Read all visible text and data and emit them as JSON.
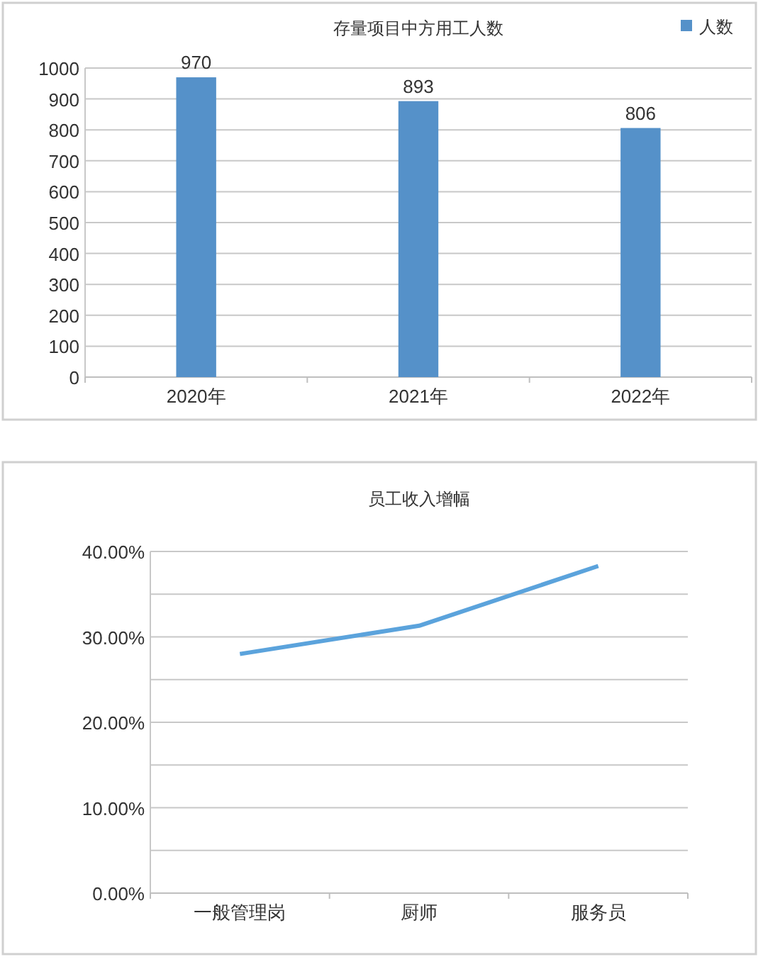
{
  "chart_data": [
    {
      "type": "bar",
      "title": "存量项目中方用工人数",
      "categories": [
        "2020年",
        "2021年",
        "2022年"
      ],
      "series": [
        {
          "name": "人数",
          "color": "#5591c9",
          "values": [
            970,
            893,
            806
          ]
        }
      ],
      "ylim": [
        0,
        1000
      ],
      "yticks": [
        0,
        100,
        200,
        300,
        400,
        500,
        600,
        700,
        800,
        900,
        1000
      ],
      "grid": "y",
      "legend": "top right",
      "data_labels": true
    },
    {
      "type": "line",
      "title": "员工收入增幅",
      "categories": [
        "一般管理岗",
        "厨师",
        "服务员"
      ],
      "series": [
        {
          "color": "#5ba3dc",
          "values": [
            28.0,
            31.3,
            38.3
          ]
        }
      ],
      "ylim": [
        0,
        40
      ],
      "yticks": [
        {
          "value": 0,
          "label": "0.00%"
        },
        {
          "value": 5,
          "label": null
        },
        {
          "value": 10,
          "label": "10.00%"
        },
        {
          "value": 15,
          "label": null
        },
        {
          "value": 20,
          "label": "20.00%"
        },
        {
          "value": 25,
          "label": null
        },
        {
          "value": 30,
          "label": "30.00%"
        },
        {
          "value": 35,
          "label": null
        },
        {
          "value": 40,
          "label": "40.00%"
        }
      ],
      "grid": "y",
      "marker": "none"
    }
  ]
}
